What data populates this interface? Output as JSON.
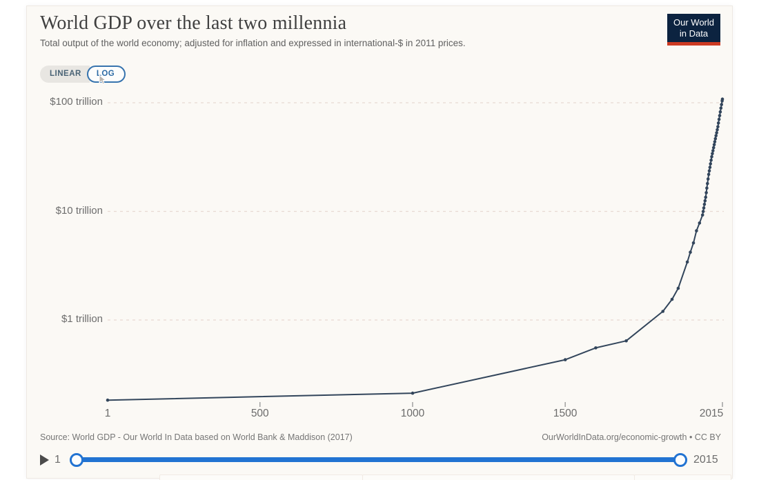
{
  "header": {
    "title": "World GDP over the last two millennia",
    "subtitle": "Total output of the world economy; adjusted for inflation and expressed in international-$ in 2011 prices.",
    "logo": {
      "line1": "Our World",
      "line2": "in Data"
    }
  },
  "scale_toggle": {
    "linear_label": "LINEAR",
    "log_label": "LOG",
    "selected": "LOG"
  },
  "chart_data": {
    "type": "line",
    "title": "World GDP over the last two millennia",
    "series_name": "World GDP",
    "unit": "international-$ (2011 prices), trillions",
    "yscale": "log",
    "xlim": [
      1,
      2015
    ],
    "ylim": [
      0.15,
      130
    ],
    "grid": "dashed horizontal gridlines at each decade tick",
    "legend": "none",
    "yticks": [
      {
        "value": 1,
        "label": "$1 trillion"
      },
      {
        "value": 10,
        "label": "$10 trillion"
      },
      {
        "value": 100,
        "label": "$100 trillion"
      }
    ],
    "xticks": [
      {
        "value": 1,
        "label": "1",
        "tick": false,
        "dx": 0
      },
      {
        "value": 500,
        "label": "500",
        "tick": true,
        "dx": 0
      },
      {
        "value": 1000,
        "label": "1000",
        "tick": true,
        "dx": 0
      },
      {
        "value": 1500,
        "label": "1500",
        "tick": true,
        "dx": 0
      },
      {
        "value": 2015,
        "label": "2015",
        "tick": true,
        "dx": -16
      }
    ],
    "points": [
      [
        1,
        0.183
      ],
      [
        1000,
        0.212
      ],
      [
        1500,
        0.431
      ],
      [
        1600,
        0.554
      ],
      [
        1700,
        0.643
      ],
      [
        1820,
        1.2
      ],
      [
        1850,
        1.55
      ],
      [
        1870,
        1.96
      ],
      [
        1900,
        3.42
      ],
      [
        1910,
        4.21
      ],
      [
        1920,
        5.12
      ],
      [
        1930,
        6.63
      ],
      [
        1940,
        7.81
      ],
      [
        1950,
        9.25
      ],
      [
        1952,
        9.98
      ],
      [
        1954,
        10.76
      ],
      [
        1956,
        11.6
      ],
      [
        1958,
        12.52
      ],
      [
        1960,
        13.5
      ],
      [
        1962,
        14.87
      ],
      [
        1964,
        16.38
      ],
      [
        1966,
        18.05
      ],
      [
        1968,
        19.88
      ],
      [
        1970,
        21.9
      ],
      [
        1972,
        23.61
      ],
      [
        1974,
        25.45
      ],
      [
        1976,
        27.44
      ],
      [
        1978,
        29.59
      ],
      [
        1980,
        31.9
      ],
      [
        1982,
        33.99
      ],
      [
        1984,
        36.22
      ],
      [
        1986,
        38.59
      ],
      [
        1988,
        41.11
      ],
      [
        1990,
        43.8
      ],
      [
        1992,
        46.66
      ],
      [
        1994,
        49.72
      ],
      [
        1996,
        52.97
      ],
      [
        1998,
        56.43
      ],
      [
        2000,
        60.1
      ],
      [
        2002,
        65.04
      ],
      [
        2004,
        70.39
      ],
      [
        2006,
        76.18
      ],
      [
        2008,
        82.44
      ],
      [
        2010,
        89.2
      ],
      [
        2012,
        96.33
      ],
      [
        2014,
        104.0
      ],
      [
        2015,
        108.1
      ]
    ]
  },
  "footer": {
    "source": "Source: World GDP - Our World In Data based on World Bank & Maddison (2017)",
    "attribution": "OurWorldInData.org/economic-growth • CC BY"
  },
  "timeline": {
    "start_label": "1",
    "end_label": "2015"
  },
  "colors": {
    "panel_bg": "#fbf9f5",
    "line": "#32455b",
    "grid": "#e8d9d2",
    "axis_text": "#6b6b6b",
    "slider_blue": "#2273d2",
    "toggle_blue": "#3673ae",
    "logo_navy": "#0c2340",
    "logo_red": "#cc3b23"
  }
}
